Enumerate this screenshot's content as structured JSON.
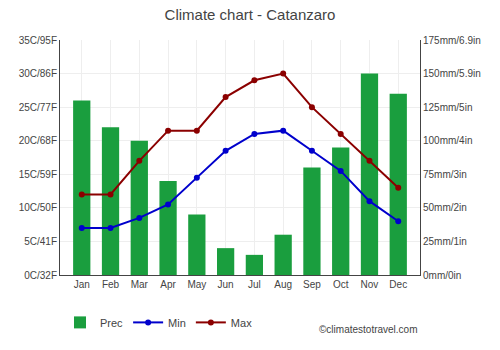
{
  "chart_data": {
    "type": "bar",
    "title": "Climate chart - Catanzaro",
    "categories": [
      "Jan",
      "Feb",
      "Mar",
      "Apr",
      "May",
      "Jun",
      "Jul",
      "Aug",
      "Sep",
      "Oct",
      "Nov",
      "Dec"
    ],
    "series": [
      {
        "name": "Prec",
        "type": "bar",
        "axis": "y2",
        "color": "#1a9e3e",
        "values": [
          130,
          110,
          100,
          70,
          45,
          20,
          15,
          30,
          80,
          95,
          150,
          135
        ]
      },
      {
        "name": "Min",
        "type": "line",
        "marker": "circle",
        "color": "#0000cc",
        "values": [
          7,
          7,
          8.5,
          10.5,
          14.5,
          18.5,
          21,
          21.5,
          18.5,
          15.5,
          11,
          8
        ]
      },
      {
        "name": "Max",
        "type": "line",
        "marker": "circle",
        "color": "#8b0000",
        "values": [
          12,
          12,
          17,
          21.5,
          21.5,
          26.5,
          29,
          30,
          25,
          21,
          17,
          13
        ]
      }
    ],
    "ylim": [
      0,
      35
    ],
    "yticks": [
      {
        "value": 0,
        "label": "0C/32F"
      },
      {
        "value": 5,
        "label": "5C/41F"
      },
      {
        "value": 10,
        "label": "10C/50F"
      },
      {
        "value": 15,
        "label": "15C/59F"
      },
      {
        "value": 20,
        "label": "20C/68F"
      },
      {
        "value": 25,
        "label": "25C/77F"
      },
      {
        "value": 30,
        "label": "30C/86F"
      },
      {
        "value": 35,
        "label": "35C/95F"
      }
    ],
    "y2lim": [
      0,
      175
    ],
    "y2ticks": [
      {
        "value": 0,
        "label": "0mm/0in"
      },
      {
        "value": 25,
        "label": "25mm/1in"
      },
      {
        "value": 50,
        "label": "50mm/2in"
      },
      {
        "value": 75,
        "label": "75mm/3in"
      },
      {
        "value": 100,
        "label": "100mm/4in"
      },
      {
        "value": 125,
        "label": "125mm/5in"
      },
      {
        "value": 150,
        "label": "150mm/5.9in"
      },
      {
        "value": 175,
        "label": "175mm/6.9in"
      }
    ],
    "grid": true,
    "legend": "lower left",
    "annotations": [
      "©climatestotravel.com"
    ]
  }
}
